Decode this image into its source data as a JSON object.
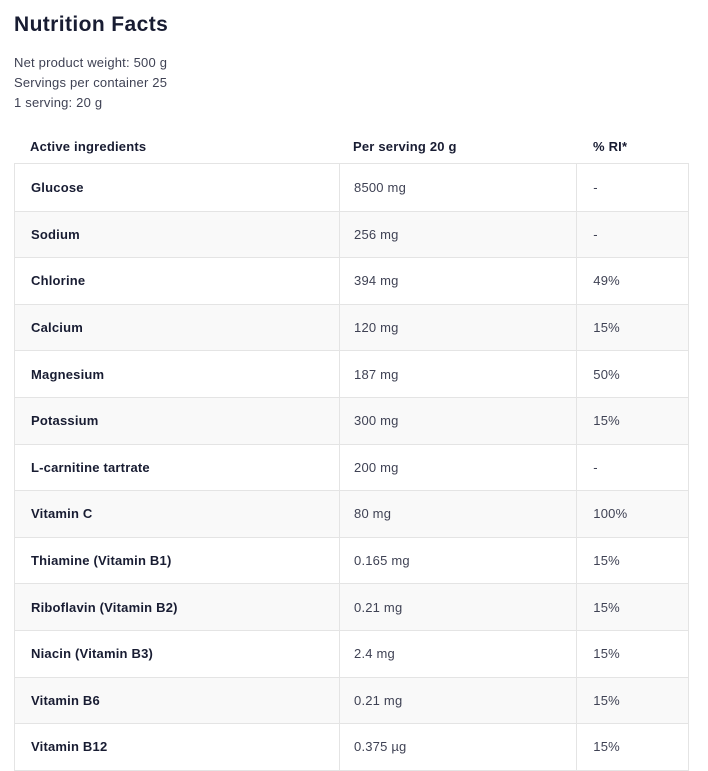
{
  "page": {
    "title": "Nutrition Facts"
  },
  "meta": {
    "net_weight": "Net product weight: 500 g",
    "servings_per_container": "Servings per container 25",
    "serving_size": "1 serving: 20 g"
  },
  "table": {
    "headers": {
      "ingredient": "Active ingredients",
      "per_serving": "Per serving 20 g",
      "ri": "% RI*"
    },
    "rows": [
      {
        "ingredient": "Glucose",
        "per_serving": "8500 mg",
        "ri": "-"
      },
      {
        "ingredient": "Sodium",
        "per_serving": "256 mg",
        "ri": "-"
      },
      {
        "ingredient": "Chlorine",
        "per_serving": "394 mg",
        "ri": "49%"
      },
      {
        "ingredient": "Calcium",
        "per_serving": "120 mg",
        "ri": "15%"
      },
      {
        "ingredient": "Magnesium",
        "per_serving": "187 mg",
        "ri": "50%"
      },
      {
        "ingredient": "Potassium",
        "per_serving": "300 mg",
        "ri": "15%"
      },
      {
        "ingredient": "L-carnitine tartrate",
        "per_serving": "200 mg",
        "ri": "-"
      },
      {
        "ingredient": "Vitamin C",
        "per_serving": "80 mg",
        "ri": "100%"
      },
      {
        "ingredient": "Thiamine (Vitamin B1)",
        "per_serving": "0.165 mg",
        "ri": "15%"
      },
      {
        "ingredient": "Riboflavin (Vitamin B2)",
        "per_serving": "0.21 mg",
        "ri": "15%"
      },
      {
        "ingredient": "Niacin (Vitamin B3)",
        "per_serving": "2.4 mg",
        "ri": "15%"
      },
      {
        "ingredient": "Vitamin B6",
        "per_serving": "0.21 mg",
        "ri": "15%"
      },
      {
        "ingredient": "Vitamin B12",
        "per_serving": "0.375 µg",
        "ri": "15%"
      }
    ]
  },
  "colors": {
    "text_dark": "#181c32",
    "text_regular": "#3f4254",
    "border": "#e4e4e4",
    "row_alt_background": "#f9f9f9",
    "background": "#ffffff"
  }
}
